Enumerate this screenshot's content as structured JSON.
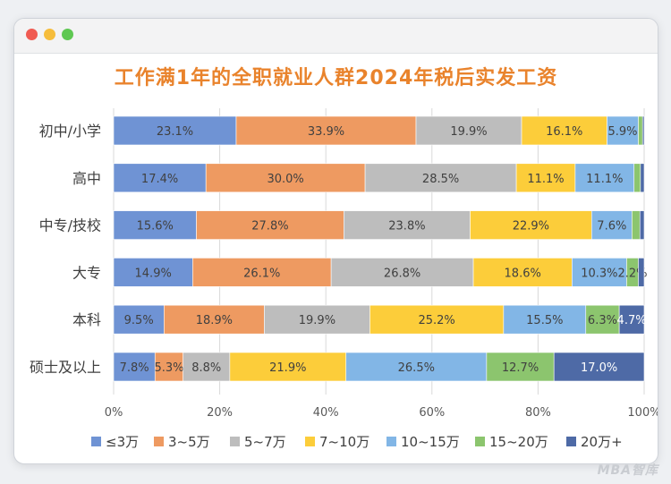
{
  "window": {
    "controls": [
      "close",
      "minimize",
      "maximize"
    ],
    "title": "工作满1年的全职就业人群2024年税后实发工资"
  },
  "watermark": "MBA智库",
  "chart_data": {
    "type": "bar",
    "orientation": "horizontal",
    "stacked": "percent",
    "title": "工作满1年的全职就业人群2024年税后实发工资",
    "categories": [
      "初中/小学",
      "高中",
      "中专/技校",
      "大专",
      "本科",
      "硕士及以上"
    ],
    "xlim": [
      0,
      100
    ],
    "xticks": [
      "0%",
      "20%",
      "40%",
      "60%",
      "80%",
      "100%"
    ],
    "grid": "vertical",
    "legend_position": "bottom",
    "series": [
      {
        "name": "≤3万",
        "color": "#6f93d4",
        "values": [
          23.1,
          17.4,
          15.6,
          14.9,
          9.5,
          7.8
        ],
        "labels": [
          "23.1%",
          "17.4%",
          "15.6%",
          "14.9%",
          "9.5%",
          "7.8%"
        ]
      },
      {
        "name": "3~5万",
        "color": "#ee9a61",
        "values": [
          33.9,
          30.0,
          27.8,
          26.1,
          18.9,
          5.3
        ],
        "labels": [
          "33.9%",
          "30.0%",
          "27.8%",
          "26.1%",
          "18.9%",
          "5.3%"
        ]
      },
      {
        "name": "5~7万",
        "color": "#bdbdbd",
        "values": [
          19.9,
          28.5,
          23.8,
          26.8,
          19.9,
          8.8
        ],
        "labels": [
          "19.9%",
          "28.5%",
          "23.8%",
          "26.8%",
          "19.9%",
          "8.8%"
        ]
      },
      {
        "name": "7~10万",
        "color": "#fccd3a",
        "values": [
          16.1,
          11.1,
          22.9,
          18.6,
          25.2,
          21.9
        ],
        "labels": [
          "16.1%",
          "11.1%",
          "22.9%",
          "18.6%",
          "25.2%",
          "21.9%"
        ]
      },
      {
        "name": "10~15万",
        "color": "#82b6e6",
        "values": [
          5.9,
          11.1,
          7.6,
          10.3,
          15.5,
          26.5
        ],
        "labels": [
          "5.9%",
          "11.1%",
          "7.6%",
          "10.3%",
          "15.5%",
          "26.5%"
        ]
      },
      {
        "name": "15~20万",
        "color": "#8cc56e",
        "values": [
          0.8,
          1.2,
          1.5,
          2.2,
          6.3,
          12.7
        ],
        "labels": [
          "",
          "",
          "",
          "2.2%",
          "6.3%",
          "12.7%"
        ]
      },
      {
        "name": "20万+",
        "color": "#4e6aa6",
        "values": [
          0.3,
          0.7,
          0.8,
          1.1,
          4.7,
          17.0
        ],
        "labels": [
          "",
          "",
          "",
          "",
          "4.7%",
          "17.0%"
        ]
      }
    ]
  }
}
